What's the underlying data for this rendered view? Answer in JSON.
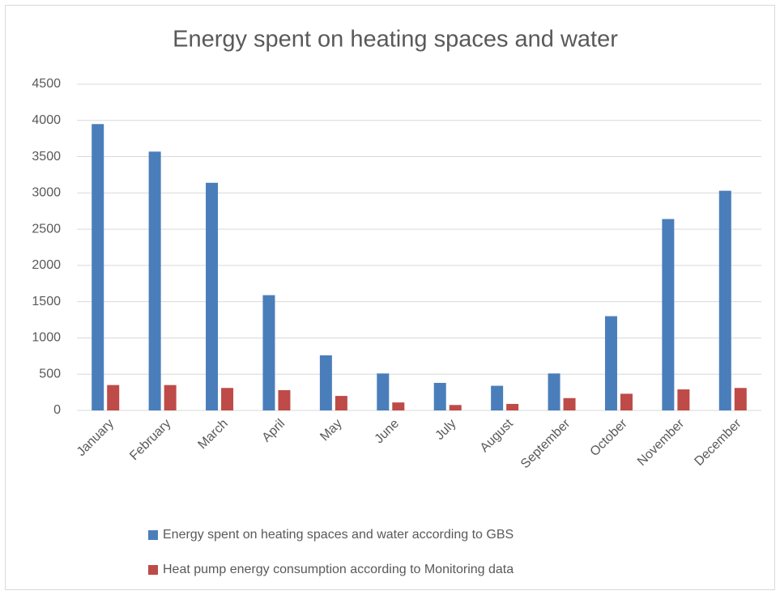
{
  "chart_data": {
    "type": "bar",
    "title": "Energy spent on heating spaces and water",
    "categories": [
      "January",
      "February",
      "March",
      "April",
      "May",
      "June",
      "July",
      "August",
      "September",
      "October",
      "November",
      "December"
    ],
    "series": [
      {
        "name": "Energy spent on heating spaces and water according to GBS",
        "color": "#4a7ebb",
        "values": [
          3950,
          3570,
          3140,
          1590,
          760,
          510,
          380,
          340,
          510,
          1300,
          2640,
          3030
        ]
      },
      {
        "name": "Heat pump energy consumption according to Monitoring data",
        "color": "#be4b48",
        "values": [
          350,
          350,
          310,
          280,
          200,
          110,
          75,
          90,
          170,
          230,
          290,
          310
        ]
      }
    ],
    "ylim": [
      0,
      4500
    ],
    "yticks": [
      0,
      500,
      1000,
      1500,
      2000,
      2500,
      3000,
      3500,
      4000,
      4500
    ],
    "grid": true,
    "legend": "bottom"
  }
}
